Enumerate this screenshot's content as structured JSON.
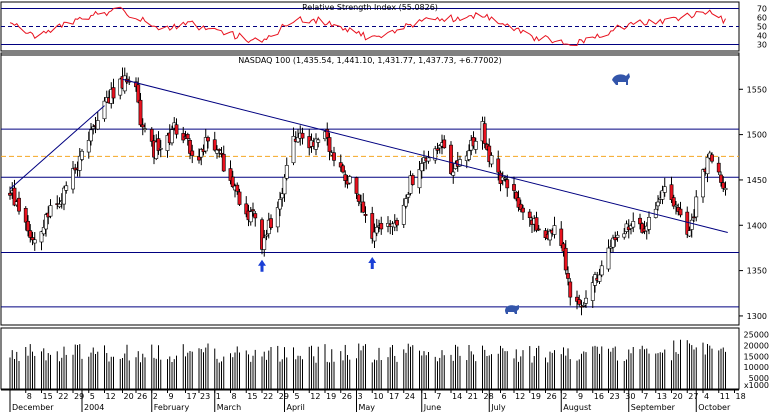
{
  "chart_data": {
    "type": "candlestick",
    "title": "NASDAQ 100 (1,435.54, 1,441.10, 1,431.77, 1,437.73, +6.77002)",
    "colors": {
      "up": "#ffffff",
      "down": "#e8121f",
      "rsi": "#e8121f",
      "volume": "#000000",
      "trend": "#000080",
      "bg": "#ffffff"
    },
    "price_axis": {
      "ylim": [
        1290,
        1590
      ],
      "ticks": [
        "1300",
        "1350",
        "1400",
        "1450",
        "1500",
        "1550"
      ]
    },
    "horizontal_levels": [
      1310,
      1370,
      1453,
      1506
    ],
    "dashed_level": 1476,
    "trendline": [
      {
        "date": "2004-01-20",
        "price": 1561
      },
      {
        "date": "2004-10-15",
        "price": 1392
      }
    ],
    "arrow_markers": [
      {
        "date": "2004-03-22",
        "price": 1362
      },
      {
        "date": "2004-05-10",
        "price": 1365
      }
    ],
    "animal_icons": {
      "bull": "bull-icon",
      "bear": "bear-icon"
    },
    "candles": [],
    "rsi": {
      "title": "Relative Strength Index (55.0826)",
      "ylim": [
        25,
        75
      ],
      "ticks": [
        "30",
        "40",
        "50",
        "60",
        "70"
      ],
      "levels": [
        30,
        50,
        70
      ],
      "values": []
    },
    "volume": {
      "ticks": [
        "25000",
        "20000",
        "15000",
        "10000",
        "5000",
        "x1000"
      ],
      "values": []
    },
    "x_axis": {
      "day_ticks": [
        {
          "label": "8",
          "date": "2003-12-08"
        },
        {
          "label": "15",
          "date": "2003-12-15"
        },
        {
          "label": "22",
          "date": "2003-12-22"
        },
        {
          "label": "29",
          "date": "2003-12-29"
        },
        {
          "label": "5",
          "date": "2004-01-05"
        },
        {
          "label": "12",
          "date": "2004-01-12"
        },
        {
          "label": "20",
          "date": "2004-01-20"
        },
        {
          "label": "26",
          "date": "2004-01-26"
        },
        {
          "label": "2",
          "date": "2004-02-02"
        },
        {
          "label": "9",
          "date": "2004-02-09"
        },
        {
          "label": "17",
          "date": "2004-02-17"
        },
        {
          "label": "23",
          "date": "2004-02-23"
        },
        {
          "label": "1",
          "date": "2004-03-01"
        },
        {
          "label": "8",
          "date": "2004-03-08"
        },
        {
          "label": "15",
          "date": "2004-03-15"
        },
        {
          "label": "22",
          "date": "2004-03-22"
        },
        {
          "label": "29",
          "date": "2004-03-29"
        },
        {
          "label": "5",
          "date": "2004-04-05"
        },
        {
          "label": "12",
          "date": "2004-04-12"
        },
        {
          "label": "19",
          "date": "2004-04-19"
        },
        {
          "label": "26",
          "date": "2004-04-26"
        },
        {
          "label": "3",
          "date": "2004-05-03"
        },
        {
          "label": "10",
          "date": "2004-05-10"
        },
        {
          "label": "17",
          "date": "2004-05-17"
        },
        {
          "label": "24",
          "date": "2004-05-24"
        },
        {
          "label": "1",
          "date": "2004-06-01"
        },
        {
          "label": "7",
          "date": "2004-06-07"
        },
        {
          "label": "14",
          "date": "2004-06-14"
        },
        {
          "label": "21",
          "date": "2004-06-21"
        },
        {
          "label": "28",
          "date": "2004-06-28"
        },
        {
          "label": "6",
          "date": "2004-07-06"
        },
        {
          "label": "12",
          "date": "2004-07-12"
        },
        {
          "label": "19",
          "date": "2004-07-19"
        },
        {
          "label": "26",
          "date": "2004-07-26"
        },
        {
          "label": "2",
          "date": "2004-08-02"
        },
        {
          "label": "9",
          "date": "2004-08-09"
        },
        {
          "label": "16",
          "date": "2004-08-16"
        },
        {
          "label": "23",
          "date": "2004-08-23"
        },
        {
          "label": "30",
          "date": "2004-08-30"
        },
        {
          "label": "7",
          "date": "2004-09-07"
        },
        {
          "label": "13",
          "date": "2004-09-13"
        },
        {
          "label": "20",
          "date": "2004-09-20"
        },
        {
          "label": "27",
          "date": "2004-09-27"
        },
        {
          "label": "4",
          "date": "2004-10-04"
        },
        {
          "label": "11",
          "date": "2004-10-11"
        },
        {
          "label": "18",
          "date": "2004-10-18"
        }
      ],
      "month_labels": [
        {
          "label": "December",
          "date": "2003-12-01"
        },
        {
          "label": "2004",
          "date": "2004-01-02"
        },
        {
          "label": "February",
          "date": "2004-02-02"
        },
        {
          "label": "March",
          "date": "2004-03-01"
        },
        {
          "label": "April",
          "date": "2004-04-01"
        },
        {
          "label": "May",
          "date": "2004-05-03"
        },
        {
          "label": "June",
          "date": "2004-06-01"
        },
        {
          "label": "July",
          "date": "2004-07-01"
        },
        {
          "label": "August",
          "date": "2004-08-02"
        },
        {
          "label": "September",
          "date": "2004-09-01"
        },
        {
          "label": "October",
          "date": "2004-10-01"
        }
      ]
    }
  }
}
